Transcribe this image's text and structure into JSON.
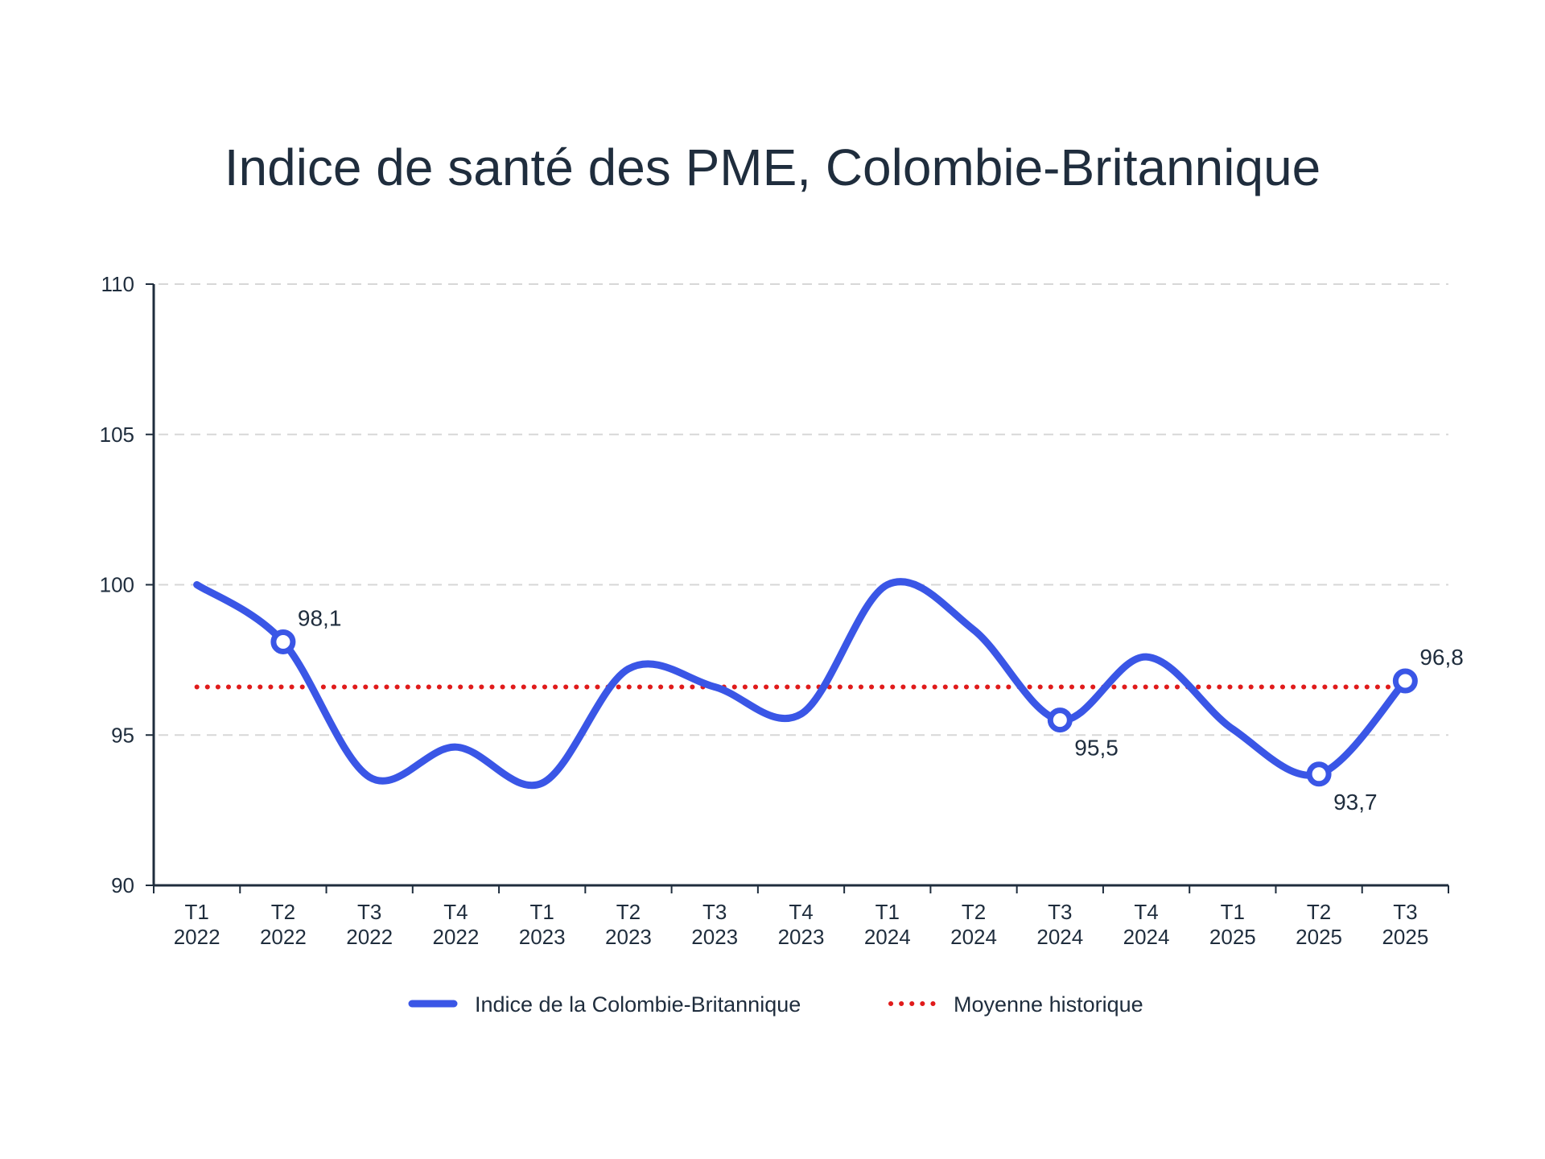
{
  "chart_data": {
    "type": "line",
    "title": "Indice de santé des PME, Colombie-Britannique",
    "xlabel": "",
    "ylabel": "",
    "categories": [
      [
        "T1",
        "2022"
      ],
      [
        "T2",
        "2022"
      ],
      [
        "T3",
        "2022"
      ],
      [
        "T4",
        "2022"
      ],
      [
        "T1",
        "2023"
      ],
      [
        "T2",
        "2023"
      ],
      [
        "T3",
        "2023"
      ],
      [
        "T4",
        "2023"
      ],
      [
        "T1",
        "2024"
      ],
      [
        "T2",
        "2024"
      ],
      [
        "T3",
        "2024"
      ],
      [
        "T4",
        "2024"
      ],
      [
        "T1",
        "2025"
      ],
      [
        "T2",
        "2025"
      ],
      [
        "T3",
        "2025"
      ]
    ],
    "ylim": [
      90,
      110
    ],
    "yticks": [
      "90",
      "95",
      "100",
      "105",
      "110"
    ],
    "ytick_values": [
      90,
      95,
      100,
      105,
      110
    ],
    "grid": true,
    "legend_position": "bottom-center",
    "series": [
      {
        "name": "Indice de la Colombie-Britannique",
        "color": "#3a56e6",
        "style": "solid-smooth",
        "values": [
          100.0,
          98.1,
          93.6,
          94.6,
          93.4,
          97.2,
          96.6,
          95.7,
          100.0,
          98.5,
          95.5,
          97.6,
          95.2,
          93.7,
          96.8
        ]
      },
      {
        "name": "Moyenne historique",
        "color": "#e01b1b",
        "style": "dotted",
        "values": [
          96.6,
          96.6,
          96.6,
          96.6,
          96.6,
          96.6,
          96.6,
          96.6,
          96.6,
          96.6,
          96.6,
          96.6,
          96.6,
          96.6,
          96.6
        ]
      }
    ],
    "annotations": [
      {
        "index": 1,
        "text": "98,1",
        "placement": "above-right"
      },
      {
        "index": 10,
        "text": "95,5",
        "placement": "below-right"
      },
      {
        "index": 13,
        "text": "93,7",
        "placement": "below-right"
      },
      {
        "index": 14,
        "text": "96,8",
        "placement": "above-right"
      }
    ],
    "colors": {
      "axis": "#1f2d3d",
      "grid": "#d7d7d7",
      "text": "#1f2d3d"
    }
  }
}
